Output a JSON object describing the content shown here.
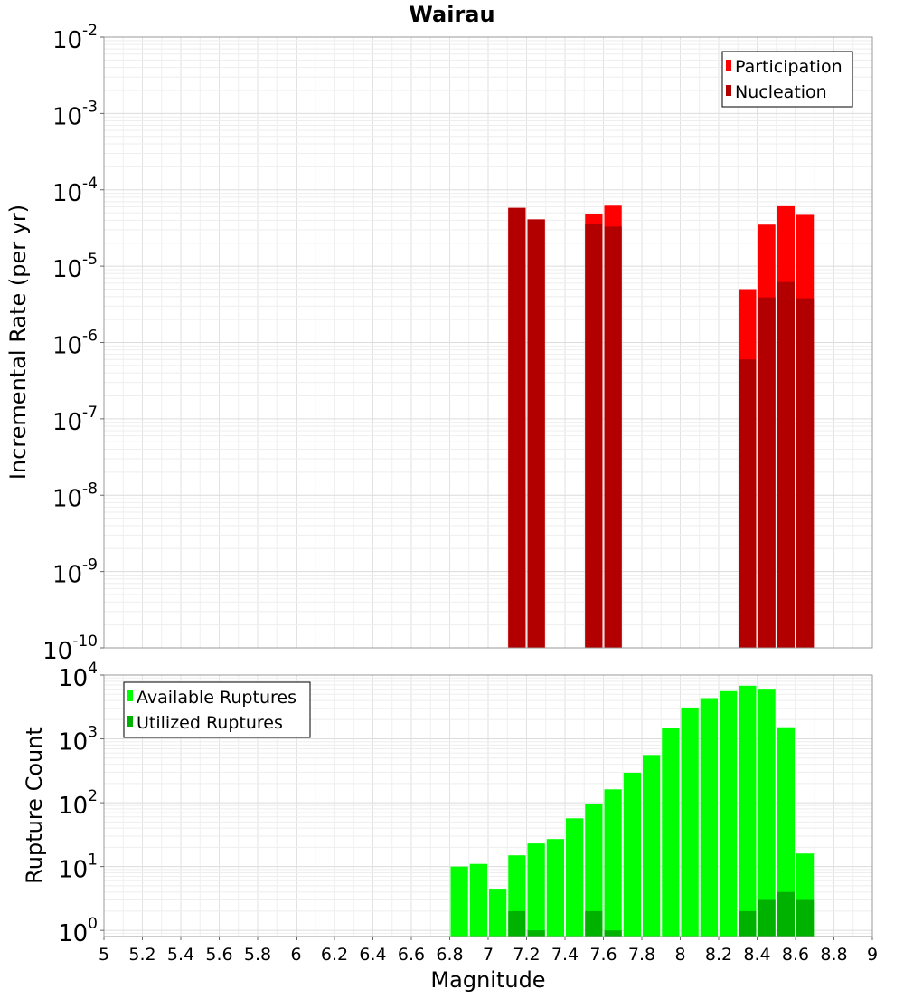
{
  "title": "Wairau",
  "chart_data": [
    {
      "type": "bar",
      "title": "Wairau",
      "ylabel": "Incremental Rate (per yr)",
      "yscale": "log",
      "ylim": [
        1e-10,
        0.01
      ],
      "xlim": [
        5,
        9
      ],
      "y_tick_labels": [
        {
          "base": "10",
          "exp": "-10"
        },
        {
          "base": "10",
          "exp": "-9"
        },
        {
          "base": "10",
          "exp": "-8"
        },
        {
          "base": "10",
          "exp": "-7"
        },
        {
          "base": "10",
          "exp": "-6"
        },
        {
          "base": "10",
          "exp": "-5"
        },
        {
          "base": "10",
          "exp": "-4"
        },
        {
          "base": "10",
          "exp": "-3"
        },
        {
          "base": "10",
          "exp": "-2"
        }
      ],
      "legend_position": "top-right",
      "grid": true,
      "bar_width": 0.1,
      "series": [
        {
          "name": "Participation",
          "color": "#ff0000",
          "points": [
            {
              "x": 7.15,
              "y": 5.8e-05
            },
            {
              "x": 7.25,
              "y": 4.1e-05
            },
            {
              "x": 7.55,
              "y": 4.8e-05
            },
            {
              "x": 7.65,
              "y": 6.2e-05
            },
            {
              "x": 8.35,
              "y": 5e-06
            },
            {
              "x": 8.45,
              "y": 3.5e-05
            },
            {
              "x": 8.55,
              "y": 6.1e-05
            },
            {
              "x": 8.65,
              "y": 4.7e-05
            }
          ]
        },
        {
          "name": "Nucleation",
          "color": "#b20000",
          "points": [
            {
              "x": 7.15,
              "y": 5.8e-05
            },
            {
              "x": 7.25,
              "y": 4.1e-05
            },
            {
              "x": 7.55,
              "y": 3.6e-05
            },
            {
              "x": 7.65,
              "y": 3.3e-05
            },
            {
              "x": 8.35,
              "y": 6e-07
            },
            {
              "x": 8.45,
              "y": 3.9e-06
            },
            {
              "x": 8.55,
              "y": 6.2e-06
            },
            {
              "x": 8.65,
              "y": 3.8e-06
            }
          ]
        }
      ]
    },
    {
      "type": "bar",
      "xlabel": "Magnitude",
      "ylabel": "Rupture Count",
      "yscale": "log",
      "ylim": [
        0.8,
        10000
      ],
      "xlim": [
        5,
        9
      ],
      "x_ticks": [
        "5",
        "5.2",
        "5.4",
        "5.6",
        "5.8",
        "6",
        "6.2",
        "6.4",
        "6.6",
        "6.8",
        "7",
        "7.2",
        "7.4",
        "7.6",
        "7.8",
        "8",
        "8.2",
        "8.4",
        "8.6",
        "8.8",
        "9"
      ],
      "y_tick_labels": [
        {
          "base": "10",
          "exp": "0"
        },
        {
          "base": "10",
          "exp": "1"
        },
        {
          "base": "10",
          "exp": "2"
        },
        {
          "base": "10",
          "exp": "3"
        },
        {
          "base": "10",
          "exp": "4"
        }
      ],
      "legend_position": "top-left",
      "grid": true,
      "bar_width": 0.1,
      "series": [
        {
          "name": "Available Ruptures",
          "color": "#00ff00",
          "points": [
            {
              "x": 6.85,
              "y": 10
            },
            {
              "x": 6.95,
              "y": 11
            },
            {
              "x": 7.05,
              "y": 4.5
            },
            {
              "x": 7.15,
              "y": 15
            },
            {
              "x": 7.25,
              "y": 23
            },
            {
              "x": 7.35,
              "y": 27
            },
            {
              "x": 7.45,
              "y": 57
            },
            {
              "x": 7.55,
              "y": 97
            },
            {
              "x": 7.65,
              "y": 162
            },
            {
              "x": 7.75,
              "y": 295
            },
            {
              "x": 7.85,
              "y": 560
            },
            {
              "x": 7.95,
              "y": 1480
            },
            {
              "x": 8.05,
              "y": 3100
            },
            {
              "x": 8.15,
              "y": 4350
            },
            {
              "x": 8.25,
              "y": 5600
            },
            {
              "x": 8.35,
              "y": 6800
            },
            {
              "x": 8.45,
              "y": 6100
            },
            {
              "x": 8.55,
              "y": 1520
            },
            {
              "x": 8.65,
              "y": 16
            }
          ]
        },
        {
          "name": "Utilized Ruptures",
          "color": "#00b200",
          "points": [
            {
              "x": 7.15,
              "y": 2
            },
            {
              "x": 7.25,
              "y": 1
            },
            {
              "x": 7.55,
              "y": 2
            },
            {
              "x": 7.65,
              "y": 1
            },
            {
              "x": 8.35,
              "y": 2
            },
            {
              "x": 8.45,
              "y": 3
            },
            {
              "x": 8.55,
              "y": 4
            },
            {
              "x": 8.65,
              "y": 3
            }
          ]
        }
      ]
    }
  ]
}
